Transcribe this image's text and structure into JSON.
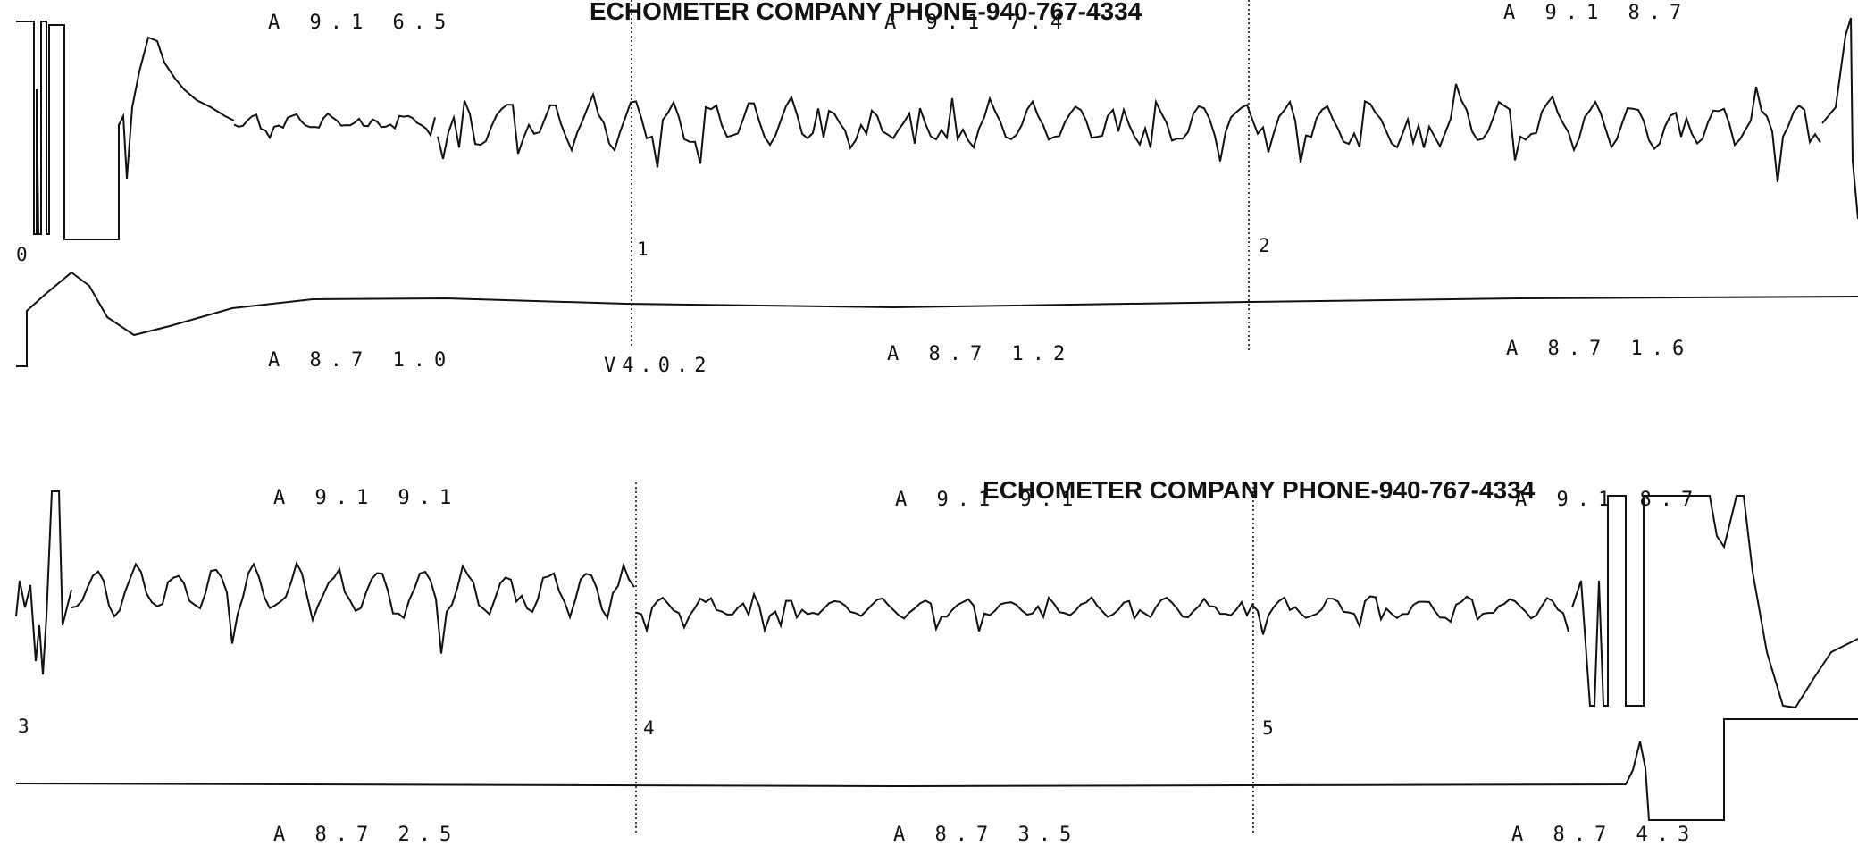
{
  "header": {
    "watermark_top": "ECHOMETER COMPANY PHONE-940-767-4334",
    "watermark_bottom": "ECHOMETER COMPANY PHONE-940-767-4334"
  },
  "colors": {
    "trace": "#111111",
    "background": "#ffffff"
  },
  "chart_data": [
    {
      "type": "line",
      "title": "",
      "segments": [
        {
          "marker": "0",
          "top_label": "A 9.1 6.5",
          "bottom_label": "A 8.7 1.0",
          "mid_label": "V4.0.2"
        },
        {
          "marker": "1",
          "top_label": "A 9.1 7.4",
          "bottom_label": "A 8.7 1.2"
        },
        {
          "marker": "2",
          "top_label": "A 9.1 8.7",
          "bottom_label": "A 8.7 1.6"
        }
      ],
      "series": [
        {
          "values": "acoustic trace (oscillatory waveform)"
        },
        {
          "values": "reference/baseline trace"
        }
      ]
    },
    {
      "type": "line",
      "title": "",
      "segments": [
        {
          "marker": "3",
          "top_label": "A 9.1 9.1",
          "bottom_label": "A 8.7 2.5"
        },
        {
          "marker": "4",
          "top_label": "A 9.1 9.1",
          "bottom_label": "A 8.7 3.5"
        },
        {
          "marker": "5",
          "top_label": "A 9.1 8.7",
          "bottom_label": "A 8.7 4.3"
        }
      ],
      "series": [
        {
          "values": "acoustic trace (oscillatory waveform)"
        },
        {
          "values": "reference/baseline trace"
        }
      ]
    }
  ]
}
